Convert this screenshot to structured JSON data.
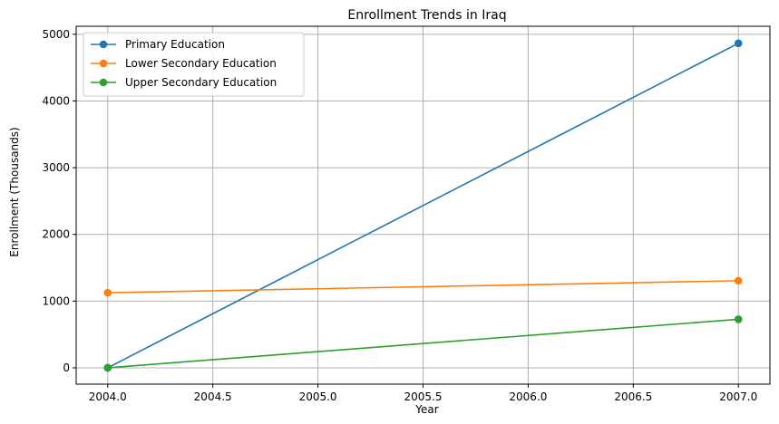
{
  "chart_data": {
    "type": "line",
    "title": "Enrollment Trends in Iraq",
    "xlabel": "Year",
    "ylabel": "Enrollment (Thousands)",
    "x": [
      2004,
      2007
    ],
    "xlim": [
      2003.85,
      2007.15
    ],
    "ylim": [
      -245,
      5120
    ],
    "xticks": [
      2004.0,
      2004.5,
      2005.0,
      2005.5,
      2006.0,
      2006.5,
      2007.0
    ],
    "xtick_labels": [
      "2004.0",
      "2004.5",
      "2005.0",
      "2005.5",
      "2006.0",
      "2006.5",
      "2007.0"
    ],
    "yticks": [
      0,
      1000,
      2000,
      3000,
      4000,
      5000
    ],
    "ytick_labels": [
      "0",
      "1000",
      "2000",
      "3000",
      "4000",
      "5000"
    ],
    "grid": true,
    "legend_position": "top-left",
    "series": [
      {
        "name": "Primary Education",
        "color": "#1f77b4",
        "values": [
          0,
          4865
        ]
      },
      {
        "name": "Lower Secondary Education",
        "color": "#ff7f0e",
        "values": [
          1125,
          1305
        ]
      },
      {
        "name": "Upper Secondary Education",
        "color": "#2ca02c",
        "values": [
          0,
          727
        ]
      }
    ]
  }
}
